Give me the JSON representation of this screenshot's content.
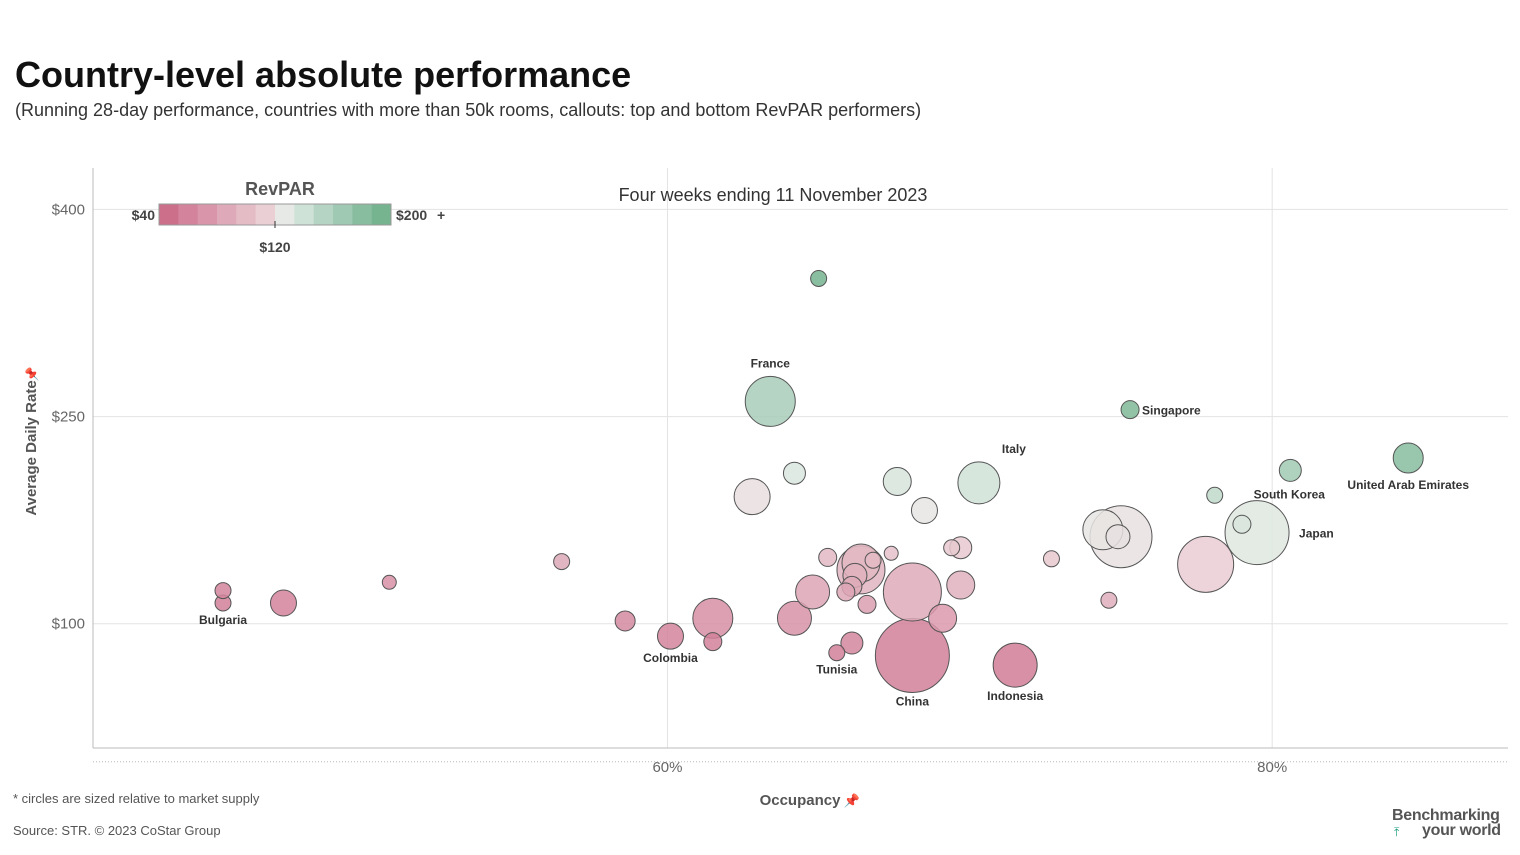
{
  "header": {
    "title": "Country-level absolute performance",
    "subtitle": "(Running 28-day performance, countries with more than 50k rooms, callouts: top and bottom RevPAR performers)"
  },
  "legend": {
    "title": "RevPAR",
    "min_label": "$40",
    "max_label": "$200",
    "max_suffix": "+",
    "mid_label": "$120",
    "colors": [
      "#cc6f8b",
      "#d3839c",
      "#d995aa",
      "#deaab9",
      "#e4bcc6",
      "#eacfd5",
      "#e6e9e6",
      "#cfe2d7",
      "#b6d4c3",
      "#9fc9b2",
      "#88bda0",
      "#76b38f"
    ]
  },
  "footer": {
    "note": "* circles are sized relative to market supply",
    "source": "Source: STR. © 2023 CoStar Group"
  },
  "logo": {
    "line1": "Benchmarking",
    "line2": "your world",
    "arrow": "⤒"
  },
  "chart_data": {
    "type": "scatter",
    "title": "Four weeks ending 11 November 2023",
    "xlabel": "Occupancy",
    "ylabel": "Average Daily Rate",
    "x_pin_icon": "pin-icon",
    "y_pin_icon": "pin-icon",
    "xlim": [
      41,
      87.8
    ],
    "ylim": [
      10,
      430
    ],
    "xticks": [
      {
        "v": 60,
        "label": "60%"
      },
      {
        "v": 80,
        "label": "80%"
      }
    ],
    "yticks": [
      {
        "v": 100,
        "label": "$100"
      },
      {
        "v": 250,
        "label": "$250"
      },
      {
        "v": 400,
        "label": "$400"
      }
    ],
    "reference_line_y": 0,
    "size_note": "circles are sized relative to market supply",
    "points": [
      {
        "occ": 45.3,
        "adr": 115,
        "revpar": 52,
        "size": 8,
        "label": "Bulgaria"
      },
      {
        "occ": 45.3,
        "adr": 124,
        "revpar": 56,
        "size": 8,
        "label": ""
      },
      {
        "occ": 47.3,
        "adr": 115,
        "revpar": 54,
        "size": 13,
        "label": ""
      },
      {
        "occ": 50.8,
        "adr": 130,
        "revpar": 66,
        "size": 7,
        "label": ""
      },
      {
        "occ": 56.5,
        "adr": 145,
        "revpar": 82,
        "size": 8,
        "label": ""
      },
      {
        "occ": 58.6,
        "adr": 102,
        "revpar": 60,
        "size": 10,
        "label": ""
      },
      {
        "occ": 60.1,
        "adr": 91,
        "revpar": 55,
        "size": 13,
        "label": "Colombia"
      },
      {
        "occ": 61.5,
        "adr": 87,
        "revpar": 53,
        "size": 9,
        "label": ""
      },
      {
        "occ": 61.5,
        "adr": 104,
        "revpar": 64,
        "size": 20,
        "label": ""
      },
      {
        "occ": 62.8,
        "adr": 192,
        "revpar": 121,
        "size": 18,
        "label": ""
      },
      {
        "occ": 63.4,
        "adr": 261,
        "revpar": 165,
        "size": 25,
        "label": "France"
      },
      {
        "occ": 64.2,
        "adr": 104,
        "revpar": 67,
        "size": 17,
        "label": ""
      },
      {
        "occ": 64.2,
        "adr": 209,
        "revpar": 134,
        "size": 11,
        "label": ""
      },
      {
        "occ": 64.8,
        "adr": 123,
        "revpar": 80,
        "size": 17,
        "label": ""
      },
      {
        "occ": 65.0,
        "adr": 350,
        "revpar": 228,
        "size": 8,
        "label": ""
      },
      {
        "occ": 65.3,
        "adr": 148,
        "revpar": 96,
        "size": 9,
        "label": ""
      },
      {
        "occ": 65.6,
        "adr": 79,
        "revpar": 52,
        "size": 8,
        "label": "Tunisia"
      },
      {
        "occ": 65.9,
        "adr": 123,
        "revpar": 81,
        "size": 9,
        "label": ""
      },
      {
        "occ": 66.1,
        "adr": 86,
        "revpar": 57,
        "size": 11,
        "label": ""
      },
      {
        "occ": 66.1,
        "adr": 127,
        "revpar": 84,
        "size": 10,
        "label": ""
      },
      {
        "occ": 66.2,
        "adr": 135,
        "revpar": 89,
        "size": 12,
        "label": ""
      },
      {
        "occ": 66.4,
        "adr": 139,
        "revpar": 92,
        "size": 24,
        "label": ""
      },
      {
        "occ": 66.4,
        "adr": 144,
        "revpar": 95,
        "size": 19,
        "label": ""
      },
      {
        "occ": 66.6,
        "adr": 114,
        "revpar": 76,
        "size": 9,
        "label": ""
      },
      {
        "occ": 66.8,
        "adr": 146,
        "revpar": 97,
        "size": 8,
        "label": ""
      },
      {
        "occ": 67.4,
        "adr": 151,
        "revpar": 102,
        "size": 7,
        "label": ""
      },
      {
        "occ": 67.6,
        "adr": 203,
        "revpar": 137,
        "size": 14,
        "label": ""
      },
      {
        "occ": 68.1,
        "adr": 77,
        "revpar": 52,
        "size": 37,
        "label": "China"
      },
      {
        "occ": 68.1,
        "adr": 123,
        "revpar": 84,
        "size": 29,
        "label": ""
      },
      {
        "occ": 68.5,
        "adr": 182,
        "revpar": 125,
        "size": 13,
        "label": ""
      },
      {
        "occ": 69.1,
        "adr": 104,
        "revpar": 72,
        "size": 14,
        "label": ""
      },
      {
        "occ": 69.4,
        "adr": 155,
        "revpar": 108,
        "size": 8,
        "label": ""
      },
      {
        "occ": 69.7,
        "adr": 155,
        "revpar": 108,
        "size": 11,
        "label": ""
      },
      {
        "occ": 69.7,
        "adr": 128,
        "revpar": 89,
        "size": 14,
        "label": ""
      },
      {
        "occ": 70.3,
        "adr": 202,
        "revpar": 142,
        "size": 21,
        "label": "Italy"
      },
      {
        "occ": 71.5,
        "adr": 70,
        "revpar": 50,
        "size": 22,
        "label": "Indonesia"
      },
      {
        "occ": 72.7,
        "adr": 147,
        "revpar": 107,
        "size": 8,
        "label": ""
      },
      {
        "occ": 74.4,
        "adr": 168,
        "revpar": 125,
        "size": 20,
        "label": ""
      },
      {
        "occ": 74.6,
        "adr": 117,
        "revpar": 87,
        "size": 8,
        "label": ""
      },
      {
        "occ": 74.9,
        "adr": 163,
        "revpar": 122,
        "size": 12,
        "label": ""
      },
      {
        "occ": 75.0,
        "adr": 163,
        "revpar": 122,
        "size": 31,
        "label": ""
      },
      {
        "occ": 75.3,
        "adr": 255,
        "revpar": 192,
        "size": 9,
        "label": "Singapore"
      },
      {
        "occ": 78.1,
        "adr": 193,
        "revpar": 151,
        "size": 8,
        "label": ""
      },
      {
        "occ": 77.8,
        "adr": 143,
        "revpar": 111,
        "size": 28,
        "label": ""
      },
      {
        "occ": 79.0,
        "adr": 172,
        "revpar": 136,
        "size": 9,
        "label": ""
      },
      {
        "occ": 79.5,
        "adr": 166,
        "revpar": 132,
        "size": 32,
        "label": "Japan"
      },
      {
        "occ": 80.6,
        "adr": 211,
        "revpar": 170,
        "size": 11,
        "label": "South Korea"
      },
      {
        "occ": 84.5,
        "adr": 220,
        "revpar": 186,
        "size": 15,
        "label": "United Arab Emirates"
      }
    ]
  }
}
